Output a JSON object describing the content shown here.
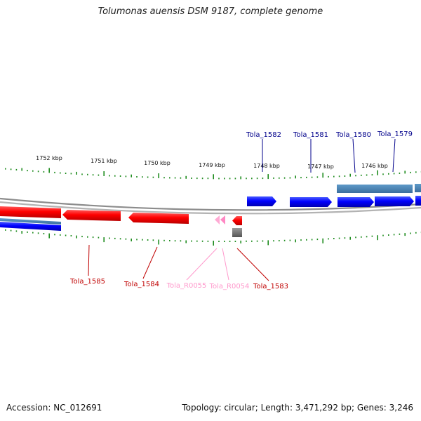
{
  "header": {
    "title": "Tolumonas auensis DSM 9187, complete genome"
  },
  "footer": {
    "accession": "Accession: NC_012691",
    "summary": "Topology: circular; Length: 3,471,292 bp; Genes: 3,246"
  },
  "scale": {
    "tick_labels": [
      "1752 kbp",
      "1751 kbp",
      "1750 kbp",
      "1749 kbp",
      "1748 kbp",
      "1747 kbp",
      "1746 kbp"
    ]
  },
  "genes": {
    "top_labels": [
      "Tola_1582",
      "Tola_1581",
      "Tola_1580",
      "Tola_1579"
    ],
    "bottom_labels": [
      "Tola_1585",
      "Tola_1584",
      "Tola_R0055",
      "Tola_R0054",
      "Tola_1583"
    ]
  },
  "colors": {
    "forward_cds": "#0000ff",
    "reverse_cds": "#ff0000",
    "rna": "#ffaad4",
    "gene_track": "#4682b4",
    "ticks": "#1e8c1e",
    "backbone": "#808080",
    "top_label": "#00008b",
    "bottom_label": "#c00000",
    "rna_label": "#ff99cc"
  }
}
